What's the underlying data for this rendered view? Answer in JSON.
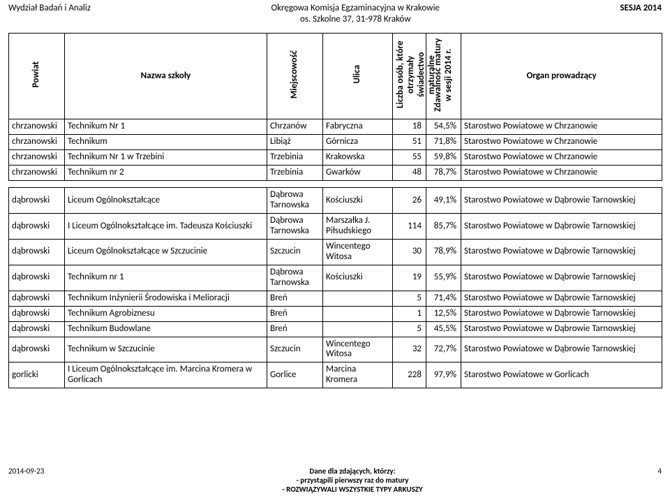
{
  "header": {
    "left": "Wydział Badań i Analiz",
    "center_line1": "Okręgowa Komisja Egzaminacyjna w Krakowie",
    "center_line2": "os. Szkolne 37, 31-978 Kraków",
    "right": "SESJA  2014"
  },
  "columns": {
    "powiat": "Powiat",
    "nazwa": "Nazwa szkoły",
    "miejscowosc": "Miejscowość",
    "ulica": "Ulica",
    "liczba": "Liczba osób, które otrzymały świadectwo maturalne",
    "zdaw": "Zdawalność matury w sesji 2014 r.",
    "organ": "Organ prowadzący"
  },
  "rows": [
    {
      "powiat": "chrzanowski",
      "nazwa": "Technikum Nr 1",
      "miejsc": "Chrzanów",
      "ulica": "Fabryczna",
      "liczba": "18",
      "zdaw": "54,5%",
      "organ": "Starostwo Powiatowe w Chrzanowie"
    },
    {
      "powiat": "chrzanowski",
      "nazwa": "Technikum",
      "miejsc": "Libiąż",
      "ulica": "Górnicza",
      "liczba": "51",
      "zdaw": "71,8%",
      "organ": "Starostwo Powiatowe w Chrzanowie"
    },
    {
      "powiat": "chrzanowski",
      "nazwa": "Technikum Nr 1 w Trzebini",
      "miejsc": "Trzebinia",
      "ulica": "Krakowska",
      "liczba": "55",
      "zdaw": "59,8%",
      "organ": "Starostwo Powiatowe w Chrzanowie"
    },
    {
      "powiat": "chrzanowski",
      "nazwa": "Technikum nr 2",
      "miejsc": "Trzebinia",
      "ulica": "Gwarków",
      "liczba": "48",
      "zdaw": "78,7%",
      "organ": "Starostwo Powiatowe w Chrzanowie"
    },
    {
      "spacer": true
    },
    {
      "powiat": "dąbrowski",
      "nazwa": "Liceum Ogólnokształcące",
      "miejsc": "Dąbrowa Tarnowska",
      "ulica": "Kościuszki",
      "liczba": "26",
      "zdaw": "49,1%",
      "organ": "Starostwo Powiatowe w Dąbrowie Tarnowskiej"
    },
    {
      "powiat": "dąbrowski",
      "nazwa": "I Liceum Ogólnokształcące im. Tadeusza Kościuszki",
      "miejsc": "Dąbrowa Tarnowska",
      "ulica": "Marszałka J. Piłsudskiego",
      "liczba": "114",
      "zdaw": "85,7%",
      "organ": "Starostwo Powiatowe w Dąbrowie Tarnowskiej"
    },
    {
      "powiat": "dąbrowski",
      "nazwa": "Liceum Ogólnokształcące w Szczucinie",
      "miejsc": "Szczucin",
      "ulica": "Wincentego Witosa",
      "liczba": "30",
      "zdaw": "78,9%",
      "organ": "Starostwo Powiatowe w Dąbrowie Tarnowskiej"
    },
    {
      "powiat": "dąbrowski",
      "nazwa": "Technikum nr 1",
      "miejsc": "Dąbrowa Tarnowska",
      "ulica": "Kościuszki",
      "liczba": "19",
      "zdaw": "55,9%",
      "organ": "Starostwo Powiatowe w Dąbrowie Tarnowskiej"
    },
    {
      "powiat": "dąbrowski",
      "nazwa": "Technikum Inżynierii Środowiska i Melioracji",
      "miejsc": "Breń",
      "ulica": "",
      "liczba": "5",
      "zdaw": "71,4%",
      "organ": "Starostwo Powiatowe w Dąbrowie Tarnowskiej"
    },
    {
      "powiat": "dąbrowski",
      "nazwa": "Technikum Agrobiznesu",
      "miejsc": "Breń",
      "ulica": "",
      "liczba": "1",
      "zdaw": "12,5%",
      "organ": "Starostwo Powiatowe w Dąbrowie Tarnowskiej"
    },
    {
      "powiat": "dąbrowski",
      "nazwa": "Technikum Budowlane",
      "miejsc": "Breń",
      "ulica": "",
      "liczba": "5",
      "zdaw": "45,5%",
      "organ": "Starostwo Powiatowe w Dąbrowie Tarnowskiej"
    },
    {
      "powiat": "dąbrowski",
      "nazwa": "Technikum w Szczucinie",
      "miejsc": "Szczucin",
      "ulica": "Wincentego Witosa",
      "liczba": "32",
      "zdaw": "72,7%",
      "organ": "Starostwo Powiatowe w Dąbrowie Tarnowskiej"
    },
    {
      "powiat": "gorlicki",
      "nazwa": "I Liceum Ogólnokształcące im. Marcina Kromera w Gorlicach",
      "miejsc": "Gorlice",
      "ulica": "Marcina Kromera",
      "liczba": "228",
      "zdaw": "97,9%",
      "organ": "Starostwo Powiatowe w Gorlicach"
    }
  ],
  "footer": {
    "date": "2014-09-23",
    "center_line1": "Dane dla zdających, którzy:",
    "center_line2": "- przystąpili pierwszy raz do matury",
    "center_line3": "- ROZWIĄZYWALI WSZYSTKIE TYPY ARKUSZY",
    "page": "4"
  }
}
